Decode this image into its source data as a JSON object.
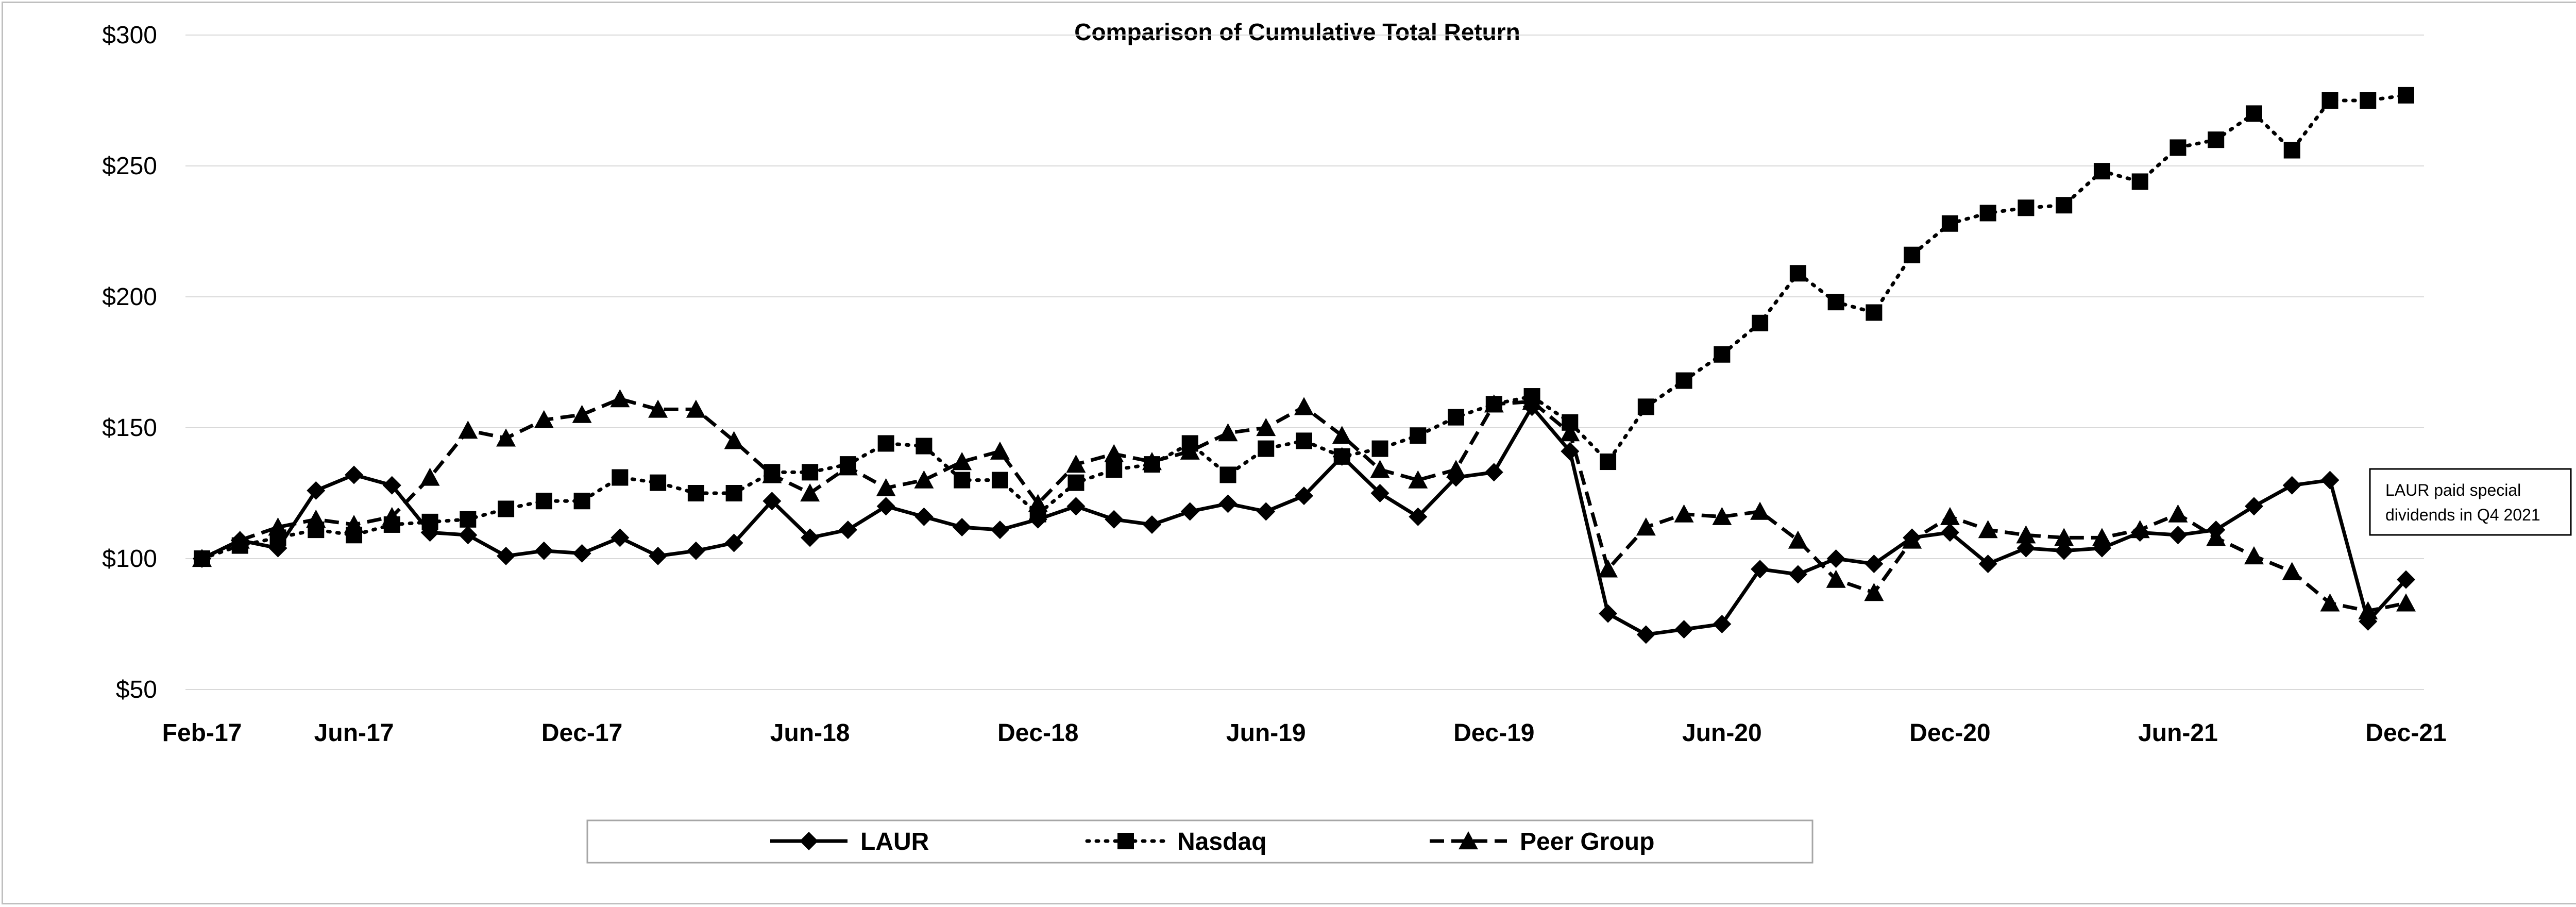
{
  "chart_data": {
    "type": "line",
    "title": "Comparison of Cumulative Total Return",
    "xlabel": "",
    "ylabel": "",
    "ylim": [
      50,
      300
    ],
    "y_ticks": [
      "$50",
      "$100",
      "$150",
      "$200",
      "$250",
      "$300"
    ],
    "y_tick_values": [
      50,
      100,
      150,
      200,
      250,
      300
    ],
    "x_tick_labels": [
      "Feb-17",
      "Jun-17",
      "Dec-17",
      "Jun-18",
      "Dec-18",
      "Jun-19",
      "Dec-19",
      "Jun-20",
      "Dec-20",
      "Jun-21",
      "Dec-21"
    ],
    "x_tick_indices": [
      0,
      4,
      10,
      16,
      22,
      28,
      34,
      40,
      46,
      52,
      58
    ],
    "x": [
      "Feb-17",
      "Mar-17",
      "Apr-17",
      "May-17",
      "Jun-17",
      "Jul-17",
      "Aug-17",
      "Sep-17",
      "Oct-17",
      "Nov-17",
      "Dec-17",
      "Jan-18",
      "Feb-18",
      "Mar-18",
      "Apr-18",
      "May-18",
      "Jun-18",
      "Jul-18",
      "Aug-18",
      "Sep-18",
      "Oct-18",
      "Nov-18",
      "Dec-18",
      "Jan-19",
      "Feb-19",
      "Mar-19",
      "Apr-19",
      "May-19",
      "Jun-19",
      "Jul-19",
      "Aug-19",
      "Sep-19",
      "Oct-19",
      "Nov-19",
      "Dec-19",
      "Jan-20",
      "Feb-20",
      "Mar-20",
      "Apr-20",
      "May-20",
      "Jun-20",
      "Jul-20",
      "Aug-20",
      "Sep-20",
      "Oct-20",
      "Nov-20",
      "Dec-20",
      "Jan-21",
      "Feb-21",
      "Mar-21",
      "Apr-21",
      "May-21",
      "Jun-21",
      "Jul-21",
      "Aug-21",
      "Sep-21",
      "Oct-21",
      "Nov-21",
      "Dec-21"
    ],
    "grid": true,
    "legend_position": "bottom",
    "series": [
      {
        "name": "LAUR",
        "marker": "diamond",
        "line_style": "solid",
        "values": [
          100,
          107,
          104,
          126,
          132,
          128,
          110,
          109,
          101,
          103,
          102,
          108,
          101,
          103,
          106,
          122,
          108,
          111,
          120,
          116,
          112,
          111,
          115,
          120,
          115,
          113,
          118,
          121,
          118,
          124,
          139,
          125,
          116,
          131,
          133,
          158,
          141,
          79,
          71,
          73,
          75,
          96,
          94,
          100,
          98,
          108,
          110,
          98,
          104,
          103,
          104,
          110,
          109,
          111,
          120,
          128,
          130,
          76,
          92
        ]
      },
      {
        "name": "Nasdaq",
        "marker": "square",
        "line_style": "dotted",
        "values": [
          100,
          105,
          108,
          111,
          109,
          113,
          114,
          115,
          119,
          122,
          122,
          131,
          129,
          125,
          125,
          133,
          133,
          136,
          144,
          143,
          130,
          130,
          117,
          129,
          134,
          136,
          144,
          132,
          142,
          145,
          139,
          142,
          147,
          154,
          159,
          162,
          152,
          137,
          158,
          168,
          178,
          190,
          209,
          198,
          194,
          216,
          228,
          232,
          234,
          235,
          248,
          244,
          257,
          260,
          270,
          256,
          275,
          275,
          277
        ]
      },
      {
        "name": "Peer Group",
        "marker": "triangle",
        "line_style": "dashed",
        "values": [
          100,
          107,
          112,
          115,
          113,
          116,
          131,
          149,
          146,
          153,
          155,
          161,
          157,
          157,
          145,
          132,
          125,
          135,
          127,
          130,
          137,
          141,
          121,
          136,
          140,
          137,
          141,
          148,
          150,
          158,
          147,
          134,
          130,
          134,
          159,
          160,
          148,
          96,
          112,
          117,
          116,
          118,
          107,
          92,
          87,
          107,
          116,
          111,
          109,
          108,
          108,
          111,
          117,
          108,
          101,
          95,
          83,
          80,
          83
        ]
      }
    ],
    "annotation": {
      "line1": "LAUR paid special",
      "line2": "dividends in Q4 2021"
    }
  }
}
